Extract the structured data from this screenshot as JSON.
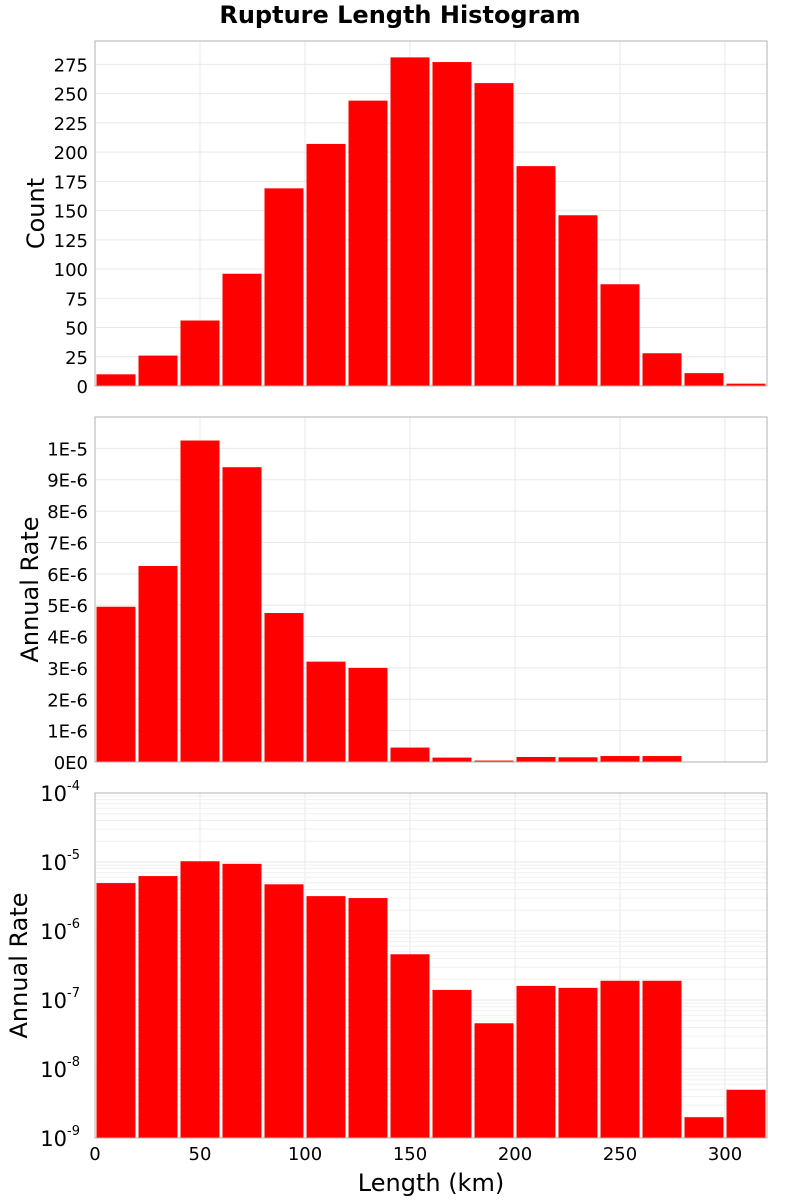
{
  "title": "Rupture Length Histogram",
  "colors": {
    "bar": "#ff0000",
    "frame": "#b0b0b0",
    "grid": "#e8e8e8"
  },
  "chart_data": [
    {
      "type": "bar",
      "ylabel": "Count",
      "xlim": [
        0,
        320
      ],
      "ylim": [
        0,
        295
      ],
      "yticks": [
        0,
        25,
        50,
        75,
        100,
        125,
        150,
        175,
        200,
        225,
        250,
        275
      ],
      "grid": true,
      "bins": [
        [
          0,
          20
        ],
        [
          20,
          40
        ],
        [
          40,
          60
        ],
        [
          60,
          80
        ],
        [
          80,
          100
        ],
        [
          100,
          120
        ],
        [
          120,
          140
        ],
        [
          140,
          160
        ],
        [
          160,
          180
        ],
        [
          180,
          200
        ],
        [
          200,
          220
        ],
        [
          220,
          240
        ],
        [
          240,
          260
        ],
        [
          260,
          280
        ],
        [
          280,
          300
        ],
        [
          300,
          320
        ]
      ],
      "values": [
        10,
        26,
        56,
        96,
        169,
        207,
        244,
        281,
        277,
        259,
        188,
        146,
        87,
        28,
        11,
        2
      ]
    },
    {
      "type": "bar",
      "ylabel": "Annual Rate",
      "xlim": [
        0,
        320
      ],
      "ylim": [
        0,
        1.1e-05
      ],
      "yticks": [
        0,
        1e-06,
        2e-06,
        3e-06,
        4e-06,
        5e-06,
        6e-06,
        7e-06,
        8e-06,
        9e-06,
        1e-05
      ],
      "ytick_labels": [
        "0E0",
        "1E-6",
        "2E-6",
        "3E-6",
        "4E-6",
        "5E-6",
        "6E-6",
        "7E-6",
        "8E-6",
        "9E-6",
        "1E-5"
      ],
      "grid": true,
      "bins": [
        [
          0,
          20
        ],
        [
          20,
          40
        ],
        [
          40,
          60
        ],
        [
          60,
          80
        ],
        [
          80,
          100
        ],
        [
          100,
          120
        ],
        [
          120,
          140
        ],
        [
          140,
          160
        ],
        [
          160,
          180
        ],
        [
          180,
          200
        ],
        [
          200,
          220
        ],
        [
          220,
          240
        ],
        [
          240,
          260
        ],
        [
          260,
          280
        ],
        [
          280,
          300
        ],
        [
          300,
          320
        ]
      ],
      "values": [
        4.95e-06,
        6.25e-06,
        1.025e-05,
        9.4e-06,
        4.75e-06,
        3.2e-06,
        3e-06,
        4.6e-07,
        1.4e-07,
        4.6e-08,
        1.6e-07,
        1.5e-07,
        1.9e-07,
        1.9e-07,
        2e-09,
        5e-09
      ]
    },
    {
      "type": "bar",
      "ylabel": "Annual Rate",
      "xlabel": "Length (km)",
      "xlim": [
        0,
        320
      ],
      "xticks": [
        0,
        50,
        100,
        150,
        200,
        250,
        300
      ],
      "ylim": [
        1e-09,
        0.0001
      ],
      "yscale": "log",
      "yticks": [
        {
          "base": "10",
          "exp": "-9",
          "value": 1e-09
        },
        {
          "base": "10",
          "exp": "-8",
          "value": 1e-08
        },
        {
          "base": "10",
          "exp": "-7",
          "value": 1e-07
        },
        {
          "base": "10",
          "exp": "-6",
          "value": 1e-06
        },
        {
          "base": "10",
          "exp": "-5",
          "value": 1e-05
        },
        {
          "base": "10",
          "exp": "-4",
          "value": 0.0001
        }
      ],
      "grid": true,
      "bins": [
        [
          0,
          20
        ],
        [
          20,
          40
        ],
        [
          40,
          60
        ],
        [
          60,
          80
        ],
        [
          80,
          100
        ],
        [
          100,
          120
        ],
        [
          120,
          140
        ],
        [
          140,
          160
        ],
        [
          160,
          180
        ],
        [
          180,
          200
        ],
        [
          200,
          220
        ],
        [
          220,
          240
        ],
        [
          240,
          260
        ],
        [
          260,
          280
        ],
        [
          280,
          300
        ],
        [
          300,
          320
        ]
      ],
      "values": [
        4.95e-06,
        6.25e-06,
        1.025e-05,
        9.4e-06,
        4.75e-06,
        3.2e-06,
        3e-06,
        4.6e-07,
        1.4e-07,
        4.6e-08,
        1.6e-07,
        1.5e-07,
        1.9e-07,
        1.9e-07,
        2e-09,
        5e-09
      ]
    }
  ]
}
